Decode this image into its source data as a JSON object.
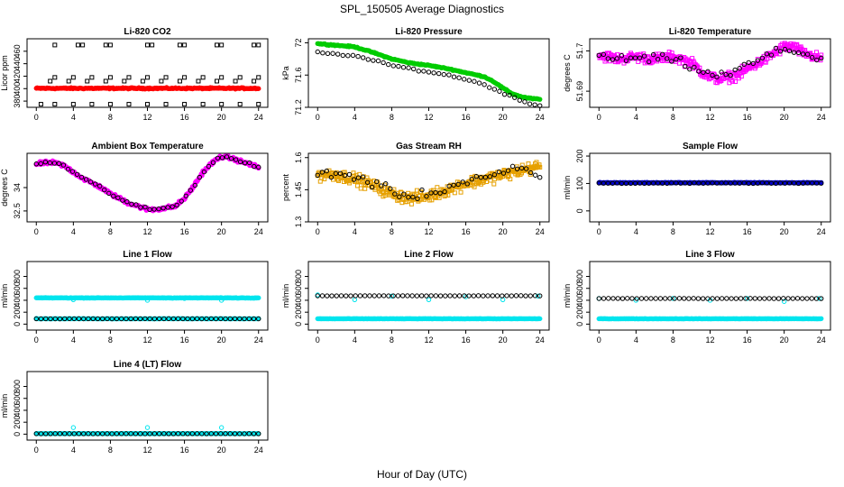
{
  "figure": {
    "title": "SPL_150505  Average Diagnostics",
    "xlabel": "Hour of Day (UTC)"
  },
  "chart_data": [
    {
      "type": "scatter",
      "title": "Li-820 CO2",
      "ylabel": "Licor ppm",
      "xlim": [
        -1,
        25
      ],
      "ylim": [
        370,
        480
      ],
      "xticks": [
        0,
        4,
        8,
        12,
        16,
        20,
        24
      ],
      "yticks": [
        380,
        400,
        420,
        440,
        460
      ],
      "series": [
        {
          "color": "#ff0000",
          "marker": "filled",
          "kind": "band",
          "y": 400.5,
          "jitter": 1.5,
          "count": 250
        },
        {
          "color": "#000000",
          "marker": "square",
          "kind": "points",
          "x": [
            0.5,
            2,
            4,
            6,
            8,
            10,
            12,
            14,
            16,
            18,
            20,
            22,
            24
          ],
          "y": [
            375,
            375,
            375,
            375,
            375,
            375,
            375,
            375,
            375,
            375,
            375,
            375,
            375
          ]
        },
        {
          "color": "#000000",
          "marker": "square",
          "kind": "points",
          "x": [
            1.5,
            3.5,
            5.5,
            7.5,
            9.5,
            11.5,
            13.5,
            15.5,
            17.5,
            19.5,
            21.5,
            23.5
          ],
          "y": [
            412,
            412,
            412,
            412,
            412,
            412,
            412,
            412,
            412,
            412,
            412,
            412
          ]
        },
        {
          "color": "#000000",
          "marker": "square",
          "kind": "points",
          "x": [
            2,
            4,
            6,
            8,
            10,
            12,
            14,
            16,
            18,
            20,
            22,
            24
          ],
          "y": [
            418,
            418,
            418,
            418,
            418,
            418,
            418,
            418,
            418,
            418,
            418,
            418
          ]
        },
        {
          "color": "#000000",
          "marker": "square",
          "kind": "points",
          "x": [
            2,
            4.5,
            5,
            7.5,
            8,
            12,
            12.5,
            15.5,
            16,
            19.5,
            20,
            23.5,
            24
          ],
          "y": [
            470,
            470,
            470,
            470,
            470,
            470,
            470,
            470,
            470,
            470,
            470,
            470,
            470
          ]
        }
      ]
    },
    {
      "type": "scatter",
      "title": "Li-820 Pressure",
      "ylabel": "kPa",
      "xlim": [
        -1,
        25
      ],
      "ylim": [
        71.2,
        72.05
      ],
      "xticks": [
        0,
        4,
        8,
        12,
        16,
        20,
        24
      ],
      "yticks": [
        71.2,
        71.6,
        72.0
      ],
      "series": [
        {
          "color": "#00cc00",
          "marker": "filled",
          "kind": "curve",
          "x": [
            0,
            2,
            4,
            6,
            8,
            10,
            12,
            14,
            16,
            18,
            19,
            20,
            21,
            22,
            23,
            24
          ],
          "y": [
            71.99,
            71.97,
            71.95,
            71.88,
            71.8,
            71.75,
            71.72,
            71.68,
            71.63,
            71.58,
            71.52,
            71.44,
            71.37,
            71.33,
            71.31,
            71.3
          ],
          "jitter": 0.01,
          "count": 220
        },
        {
          "color": "#000000",
          "marker": "circle",
          "kind": "curve",
          "x": [
            0,
            2,
            4,
            6,
            8,
            10,
            12,
            14,
            16,
            18,
            20,
            22,
            24
          ],
          "y": [
            71.88,
            71.86,
            71.84,
            71.78,
            71.72,
            71.68,
            71.64,
            71.6,
            71.55,
            71.48,
            71.38,
            71.28,
            71.22
          ],
          "jitter": 0.015,
          "count": 45
        }
      ]
    },
    {
      "type": "scatter",
      "title": "Li-820 Temperature",
      "ylabel": "degrees C",
      "xlim": [
        -1,
        25
      ],
      "ylim": [
        51.686,
        51.703
      ],
      "xticks": [
        0,
        4,
        8,
        12,
        16,
        20,
        24
      ],
      "yticks": [
        51.69,
        51.7
      ],
      "series": [
        {
          "color": "#ff00ff",
          "marker": "square",
          "kind": "curve",
          "x": [
            0,
            2,
            4,
            6,
            8,
            10,
            11,
            12,
            13,
            14,
            15,
            16,
            18,
            20,
            21,
            22,
            24
          ],
          "y": [
            51.699,
            51.698,
            51.6985,
            51.698,
            51.6985,
            51.697,
            51.695,
            51.6935,
            51.693,
            51.6935,
            51.694,
            51.6955,
            51.698,
            51.701,
            51.701,
            51.6995,
            51.698
          ],
          "jitter": 0.0018,
          "count": 330
        },
        {
          "color": "#000000",
          "marker": "circle",
          "kind": "curve",
          "x": [
            0,
            2,
            4,
            6,
            8,
            10,
            12,
            14,
            16,
            18,
            20,
            22,
            24
          ],
          "y": [
            51.699,
            51.698,
            51.698,
            51.698,
            51.698,
            51.696,
            51.694,
            51.694,
            51.6965,
            51.6985,
            51.7005,
            51.6995,
            51.698
          ],
          "jitter": 0.0015,
          "count": 50
        }
      ]
    },
    {
      "type": "scatter",
      "title": "Ambient Box Temperature",
      "ylabel": "degrees C",
      "xlim": [
        -1,
        25
      ],
      "ylim": [
        31.8,
        36.2
      ],
      "xticks": [
        0,
        4,
        8,
        12,
        16,
        20,
        24
      ],
      "yticks": [
        32.5,
        34.0
      ],
      "series": [
        {
          "color": "#ff00ff",
          "marker": "filled",
          "kind": "curve",
          "x": [
            0,
            1,
            2,
            3,
            4,
            5,
            6,
            7,
            8,
            9,
            10,
            11,
            12,
            13,
            14,
            15,
            16,
            17,
            18,
            19,
            20,
            21,
            22,
            23,
            24
          ],
          "y": [
            35.5,
            35.6,
            35.6,
            35.4,
            35.0,
            34.6,
            34.3,
            34.0,
            33.6,
            33.3,
            33.0,
            32.8,
            32.6,
            32.6,
            32.7,
            32.8,
            33.3,
            34.1,
            35.0,
            35.6,
            36.0,
            35.9,
            35.7,
            35.5,
            35.3
          ],
          "jitter": 0.16,
          "count": 300
        },
        {
          "color": "#000000",
          "marker": "circle",
          "kind": "curve",
          "x": [
            0,
            1,
            2,
            3,
            4,
            5,
            6,
            7,
            8,
            9,
            10,
            11,
            12,
            13,
            14,
            15,
            16,
            17,
            18,
            19,
            20,
            21,
            22,
            23,
            24
          ],
          "y": [
            35.5,
            35.6,
            35.6,
            35.4,
            35.0,
            34.6,
            34.3,
            34.0,
            33.6,
            33.3,
            33.0,
            32.8,
            32.6,
            32.6,
            32.7,
            32.8,
            33.3,
            34.1,
            35.0,
            35.6,
            36.0,
            35.9,
            35.7,
            35.5,
            35.3
          ],
          "jitter": 0.12,
          "count": 50
        }
      ]
    },
    {
      "type": "scatter",
      "title": "Gas Stream RH",
      "ylabel": "percent",
      "xlim": [
        -1,
        25
      ],
      "ylim": [
        1.3,
        1.62
      ],
      "xticks": [
        0,
        4,
        8,
        12,
        16,
        20,
        24
      ],
      "yticks": [
        1.3,
        1.45,
        1.6
      ],
      "series": [
        {
          "color": "#e6a000",
          "marker": "square",
          "kind": "curve",
          "x": [
            0,
            2,
            4,
            6,
            8,
            10,
            12,
            14,
            16,
            18,
            20,
            22,
            24
          ],
          "y": [
            1.52,
            1.52,
            1.5,
            1.47,
            1.43,
            1.41,
            1.42,
            1.45,
            1.48,
            1.5,
            1.52,
            1.54,
            1.56
          ],
          "jitter": 0.04,
          "count": 330
        },
        {
          "color": "#000000",
          "marker": "circle",
          "kind": "curve",
          "x": [
            0,
            2,
            4,
            6,
            8,
            10,
            12,
            14,
            16,
            18,
            20,
            22,
            24
          ],
          "y": [
            1.52,
            1.53,
            1.51,
            1.48,
            1.44,
            1.42,
            1.43,
            1.46,
            1.49,
            1.51,
            1.53,
            1.55,
            1.5
          ],
          "jitter": 0.03,
          "count": 50
        }
      ]
    },
    {
      "type": "scatter",
      "title": "Sample Flow",
      "ylabel": "ml/min",
      "xlim": [
        -1,
        25
      ],
      "ylim": [
        -40,
        210
      ],
      "xticks": [
        0,
        4,
        8,
        12,
        16,
        20,
        24
      ],
      "yticks": [
        0,
        100,
        200
      ],
      "series": [
        {
          "color": "#0000cc",
          "marker": "filled",
          "kind": "band",
          "y": 103,
          "jitter": 1.5,
          "count": 260
        },
        {
          "color": "#000000",
          "marker": "circle",
          "kind": "band",
          "y": 101,
          "jitter": 1.5,
          "count": 50
        }
      ]
    },
    {
      "type": "scatter",
      "title": "Line 1 Flow",
      "ylabel": "ml/min",
      "xlim": [
        -1,
        25
      ],
      "ylim": [
        -100,
        1050
      ],
      "xticks": [
        0,
        4,
        8,
        12,
        16,
        20,
        24
      ],
      "yticks": [
        0,
        200,
        400,
        600,
        800
      ],
      "series": [
        {
          "color": "#00e5ee",
          "marker": "filled",
          "kind": "band",
          "y": 440,
          "jitter": 6,
          "count": 260
        },
        {
          "color": "#00e5ee",
          "marker": "circle",
          "kind": "points",
          "x": [
            0,
            4,
            7.5,
            12,
            16,
            20,
            23.8
          ],
          "y": [
            95,
            410,
            440,
            400,
            430,
            400,
            440
          ]
        },
        {
          "color": "#00e5ee",
          "marker": "filled",
          "kind": "band",
          "y": 90,
          "jitter": 3,
          "count": 200
        },
        {
          "color": "#000000",
          "marker": "circle",
          "kind": "band",
          "y": 90,
          "jitter": 2,
          "count": 48
        }
      ]
    },
    {
      "type": "scatter",
      "title": "Line 2 Flow",
      "ylabel": "ml/min",
      "xlim": [
        -1,
        25
      ],
      "ylim": [
        -100,
        1050
      ],
      "xticks": [
        0,
        4,
        8,
        12,
        16,
        20,
        24
      ],
      "yticks": [
        0,
        200,
        400,
        600,
        800
      ],
      "series": [
        {
          "color": "#00e5ee",
          "marker": "filled",
          "kind": "band",
          "y": 90,
          "jitter": 3,
          "count": 260
        },
        {
          "color": "#00e5ee",
          "marker": "circle",
          "kind": "points",
          "x": [
            0,
            4,
            8,
            12,
            16,
            20,
            23.8
          ],
          "y": [
            490,
            410,
            470,
            410,
            460,
            410,
            470
          ]
        },
        {
          "color": "#000000",
          "marker": "circle",
          "kind": "band",
          "y": 475,
          "jitter": 3,
          "count": 48
        }
      ]
    },
    {
      "type": "scatter",
      "title": "Line 3 Flow",
      "ylabel": "ml/min",
      "xlim": [
        -1,
        25
      ],
      "ylim": [
        -100,
        1050
      ],
      "xticks": [
        0,
        4,
        8,
        12,
        16,
        20,
        24
      ],
      "yticks": [
        0,
        200,
        400,
        600,
        800
      ],
      "series": [
        {
          "color": "#00e5ee",
          "marker": "filled",
          "kind": "band",
          "y": 90,
          "jitter": 3,
          "count": 260
        },
        {
          "color": "#00e5ee",
          "marker": "circle",
          "kind": "points",
          "x": [
            0,
            4,
            8,
            12,
            16,
            20,
            23.8
          ],
          "y": [
            430,
            400,
            430,
            400,
            430,
            380,
            430
          ]
        },
        {
          "color": "#000000",
          "marker": "circle",
          "kind": "band",
          "y": 430,
          "jitter": 3,
          "count": 48
        }
      ]
    },
    {
      "type": "scatter",
      "title": "Line 4 (LT) Flow",
      "ylabel": "ml/min",
      "xlim": [
        -1,
        25
      ],
      "ylim": [
        -100,
        1050
      ],
      "xticks": [
        0,
        4,
        8,
        12,
        16,
        20,
        24
      ],
      "yticks": [
        0,
        200,
        400,
        600,
        800
      ],
      "series": [
        {
          "color": "#00e5ee",
          "marker": "filled",
          "kind": "band",
          "y": 8,
          "jitter": 2,
          "count": 260
        },
        {
          "color": "#00e5ee",
          "marker": "circle",
          "kind": "points",
          "x": [
            0,
            4,
            12,
            20
          ],
          "y": [
            10,
            110,
            110,
            110
          ]
        },
        {
          "color": "#000000",
          "marker": "circle",
          "kind": "band",
          "y": 8,
          "jitter": 2,
          "count": 48
        }
      ]
    }
  ]
}
